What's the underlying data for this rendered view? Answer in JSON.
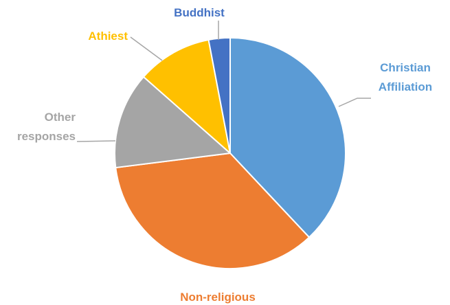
{
  "chart_data": {
    "type": "pie",
    "title": "",
    "start_angle_deg": 0,
    "direction": "clockwise",
    "slices": [
      {
        "label": "Christian\nAffiliation",
        "value": 38.0,
        "color": "#5b9bd5",
        "label_color": "#5b9bd5"
      },
      {
        "label": "Non-religious",
        "value": 35.0,
        "color": "#ed7d31",
        "label_color": "#ed7d31"
      },
      {
        "label": "Other\nresponses",
        "value": 13.5,
        "color": "#a5a5a5",
        "label_color": "#a5a5a5"
      },
      {
        "label": "Athiest",
        "value": 10.5,
        "color": "#ffc000",
        "label_color": "#ffc000"
      },
      {
        "label": "Buddhist",
        "value": 3.0,
        "color": "#4472c4",
        "label_color": "#4472c4"
      }
    ],
    "leader_line_color": "#a6a6a6",
    "slice_border_color": "#ffffff"
  }
}
